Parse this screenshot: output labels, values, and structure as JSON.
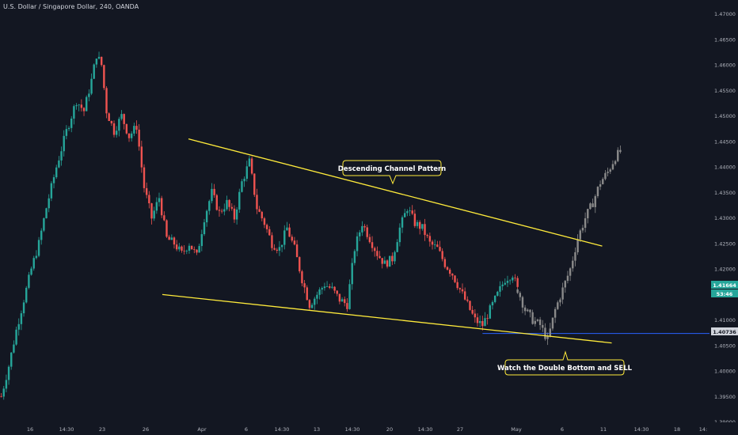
{
  "header": {
    "title": "U.S. Dollar / Singapore Dollar, 240, OANDA"
  },
  "colors": {
    "background": "#131722",
    "bull": "#26a69a",
    "bear": "#ef5350",
    "projection": "#8a8a8a",
    "channel": "#ffeb3b",
    "hline": "#2962ff",
    "axis_text": "#b2b5be"
  },
  "price_tags": {
    "current": "1.41664",
    "countdown": "53:46",
    "line_level": "1.40736"
  },
  "annotations": {
    "channel_label": "Descending Channel Pattern",
    "sell_label": "Watch the Double Bottom and SELL"
  },
  "chart_data": {
    "type": "candlestick",
    "title": "U.S. Dollar / Singapore Dollar, 240, OANDA",
    "y_ticks": [
      "1.47000",
      "1.46500",
      "1.46000",
      "1.45500",
      "1.45000",
      "1.44500",
      "1.44000",
      "1.43500",
      "1.43000",
      "1.42500",
      "1.42000",
      "1.41500",
      "1.41000",
      "1.40500",
      "1.40000",
      "1.39500",
      "1.39000"
    ],
    "ylim": [
      1.389,
      1.4715
    ],
    "x_ticks": [
      "16",
      "14:30",
      "23",
      "26",
      "Apr",
      "6",
      "14:30",
      "13",
      "14:30",
      "20",
      "14:30",
      "27",
      "May",
      "6",
      "11",
      "14:30",
      "18",
      "14:"
    ],
    "price_path": [
      [
        0,
        1.395
      ],
      [
        3,
        1.401
      ],
      [
        6,
        1.408
      ],
      [
        9,
        1.414
      ],
      [
        12,
        1.42
      ],
      [
        15,
        1.425
      ],
      [
        18,
        1.432
      ],
      [
        22,
        1.44
      ],
      [
        26,
        1.447
      ],
      [
        30,
        1.453
      ],
      [
        33,
        1.451
      ],
      [
        36,
        1.457
      ],
      [
        38,
        1.462
      ],
      [
        40,
        1.46
      ],
      [
        42,
        1.451
      ],
      [
        45,
        1.447
      ],
      [
        48,
        1.45
      ],
      [
        51,
        1.446
      ],
      [
        54,
        1.448
      ],
      [
        57,
        1.436
      ],
      [
        60,
        1.43
      ],
      [
        63,
        1.434
      ],
      [
        66,
        1.426
      ],
      [
        69,
        1.425
      ],
      [
        72,
        1.423
      ],
      [
        75,
        1.425
      ],
      [
        78,
        1.4225
      ],
      [
        81,
        1.43
      ],
      [
        84,
        1.435
      ],
      [
        87,
        1.431
      ],
      [
        90,
        1.433
      ],
      [
        93,
        1.43
      ],
      [
        96,
        1.437
      ],
      [
        99,
        1.441
      ],
      [
        102,
        1.432
      ],
      [
        105,
        1.429
      ],
      [
        108,
        1.425
      ],
      [
        111,
        1.424
      ],
      [
        114,
        1.428
      ],
      [
        117,
        1.424
      ],
      [
        120,
        1.418
      ],
      [
        123,
        1.413
      ],
      [
        126,
        1.415
      ],
      [
        129,
        1.417
      ],
      [
        132,
        1.416
      ],
      [
        135,
        1.414
      ],
      [
        138,
        1.413
      ],
      [
        141,
        1.424
      ],
      [
        144,
        1.429
      ],
      [
        147,
        1.426
      ],
      [
        150,
        1.423
      ],
      [
        153,
        1.421
      ],
      [
        156,
        1.422
      ],
      [
        159,
        1.428
      ],
      [
        162,
        1.432
      ],
      [
        165,
        1.429
      ],
      [
        168,
        1.428
      ],
      [
        171,
        1.425
      ],
      [
        174,
        1.424
      ],
      [
        177,
        1.421
      ],
      [
        180,
        1.419
      ],
      [
        183,
        1.416
      ],
      [
        186,
        1.413
      ],
      [
        189,
        1.41
      ],
      [
        192,
        1.409
      ],
      [
        195,
        1.412
      ],
      [
        198,
        1.415
      ],
      [
        201,
        1.418
      ],
      [
        204,
        1.419
      ],
      [
        206,
        1.416
      ]
    ],
    "projection_path": [
      [
        206,
        1.416
      ],
      [
        209,
        1.412
      ],
      [
        212,
        1.41
      ],
      [
        215,
        1.409
      ],
      [
        218,
        1.406
      ],
      [
        221,
        1.412
      ],
      [
        224,
        1.416
      ],
      [
        227,
        1.42
      ],
      [
        230,
        1.426
      ],
      [
        233,
        1.43
      ],
      [
        236,
        1.433
      ],
      [
        239,
        1.437
      ],
      [
        242,
        1.439
      ],
      [
        245,
        1.442
      ],
      [
        247,
        1.443
      ]
    ],
    "channel_upper": [
      [
        1,
        1.4455
      ],
      [
        18,
        1.4245
      ]
    ],
    "channel_lower": [
      [
        1,
        1.415
      ],
      [
        18,
        1.4055
      ]
    ],
    "horizontal_line": 1.40736,
    "legend": "none",
    "grid": false
  }
}
